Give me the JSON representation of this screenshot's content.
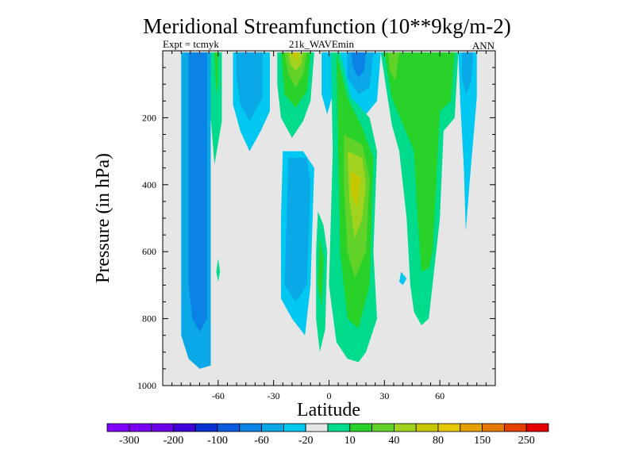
{
  "chart_data": {
    "type": "heatmap",
    "title": "Meridional Streamfunction (10**9kg/m-2)",
    "subtitle_left": "Expt = tcmyk",
    "subtitle_center": "21k_WAVEmin",
    "subtitle_right": "ANN",
    "xlabel": "Latitude",
    "ylabel": "Pressure (in hPa)",
    "xlim": [
      -90,
      90
    ],
    "ylim": [
      1000,
      0
    ],
    "x_ticks": [
      {
        "value": -60,
        "label": "-60"
      },
      {
        "value": -30,
        "label": "-30"
      },
      {
        "value": 0,
        "label": "0"
      },
      {
        "value": 30,
        "label": "30"
      },
      {
        "value": 60,
        "label": "60"
      }
    ],
    "y_ticks": [
      {
        "value": 200,
        "label": "200"
      },
      {
        "value": 400,
        "label": "400"
      },
      {
        "value": 600,
        "label": "600"
      },
      {
        "value": 800,
        "label": "800"
      },
      {
        "value": 1000,
        "label": "1000"
      }
    ],
    "background_color": "#e6e6e6",
    "colorbar": {
      "colors": [
        "#8000ff",
        "#7a00f0",
        "#6a00e6",
        "#4000d8",
        "#0830d0",
        "#0a5ae0",
        "#0a82e6",
        "#0aa8e6",
        "#00c8f0",
        "#e6e6e6",
        "#00dc8c",
        "#28d228",
        "#62d228",
        "#a0d21e",
        "#c8c800",
        "#e6c800",
        "#e6a000",
        "#e67800",
        "#e64000",
        "#e60000"
      ],
      "labels": [
        "-300",
        "-200",
        "-100",
        "-60",
        "-20",
        "10",
        "40",
        "80",
        "150",
        "250"
      ]
    },
    "contour_regions": [
      {
        "level": "-60",
        "color": "#0aa8e6",
        "points": [
          [
            -80,
            5
          ],
          [
            -64,
            5
          ],
          [
            -64,
            940
          ],
          [
            -70,
            950
          ],
          [
            -76,
            920
          ],
          [
            -80,
            850
          ]
        ]
      },
      {
        "level": "-100",
        "color": "#0a82e6",
        "points": [
          [
            -76,
            5
          ],
          [
            -66,
            5
          ],
          [
            -66,
            800
          ],
          [
            -70,
            840
          ],
          [
            -74,
            800
          ],
          [
            -76,
            700
          ]
        ]
      },
      {
        "level": "-20",
        "color": "#00c8f0",
        "points": [
          [
            -52,
            5
          ],
          [
            -32,
            5
          ],
          [
            -32,
            180
          ],
          [
            -37,
            240
          ],
          [
            -43,
            300
          ],
          [
            -48,
            240
          ],
          [
            -52,
            160
          ]
        ]
      },
      {
        "level": "-60",
        "color": "#0aa8e6",
        "points": [
          [
            -50,
            5
          ],
          [
            -36,
            5
          ],
          [
            -36,
            140
          ],
          [
            -43,
            210
          ],
          [
            -48,
            160
          ],
          [
            -50,
            80
          ]
        ]
      },
      {
        "level": "-20",
        "color": "#00c8f0",
        "points": [
          [
            -25,
            300
          ],
          [
            -14,
            300
          ],
          [
            -8,
            350
          ],
          [
            -10,
            700
          ],
          [
            -13,
            850
          ],
          [
            -20,
            800
          ],
          [
            -26,
            740
          ],
          [
            -26,
            500
          ]
        ]
      },
      {
        "level": "-60",
        "color": "#0aa8e6",
        "points": [
          [
            -22,
            320
          ],
          [
            -12,
            320
          ],
          [
            -10,
            400
          ],
          [
            -12,
            700
          ],
          [
            -18,
            750
          ],
          [
            -24,
            700
          ]
        ]
      },
      {
        "level": "-20",
        "color": "#00c8f0",
        "points": [
          [
            -4,
            5
          ],
          [
            1,
            5
          ],
          [
            2,
            130
          ],
          [
            -1,
            190
          ],
          [
            -4,
            130
          ]
        ]
      },
      {
        "level": "-20",
        "color": "#00c8f0",
        "points": [
          [
            6,
            5
          ],
          [
            28,
            5
          ],
          [
            26,
            150
          ],
          [
            20,
            190
          ],
          [
            12,
            140
          ],
          [
            6,
            80
          ]
        ]
      },
      {
        "level": "-60",
        "color": "#0aa8e6",
        "points": [
          [
            10,
            5
          ],
          [
            24,
            5
          ],
          [
            22,
            110
          ],
          [
            16,
            130
          ],
          [
            10,
            80
          ]
        ]
      },
      {
        "level": "-100",
        "color": "#0a82e6",
        "points": [
          [
            12,
            5
          ],
          [
            20,
            5
          ],
          [
            19,
            60
          ],
          [
            16,
            80
          ],
          [
            13,
            50
          ]
        ]
      },
      {
        "level": "-20",
        "color": "#00c8f0",
        "points": [
          [
            70,
            5
          ],
          [
            80,
            5
          ],
          [
            80,
            140
          ],
          [
            76,
            400
          ],
          [
            74,
            540
          ],
          [
            73,
            350
          ],
          [
            71,
            150
          ]
        ]
      },
      {
        "level": "-60",
        "color": "#0aa8e6",
        "points": [
          [
            72,
            5
          ],
          [
            78,
            5
          ],
          [
            77,
            90
          ],
          [
            74,
            130
          ],
          [
            72,
            80
          ]
        ]
      },
      {
        "level": "-20",
        "color": "#00c8f0",
        "points": [
          [
            39,
            660
          ],
          [
            42,
            680
          ],
          [
            40,
            700
          ],
          [
            38,
            690
          ]
        ]
      },
      {
        "level": "10",
        "color": "#00dc8c",
        "points": [
          [
            -64,
            5
          ],
          [
            -58,
            5
          ],
          [
            -58,
            210
          ],
          [
            -62,
            340
          ],
          [
            -64,
            200
          ]
        ]
      },
      {
        "level": "40",
        "color": "#28d228",
        "points": [
          [
            -62,
            5
          ],
          [
            -60,
            5
          ],
          [
            -60,
            100
          ],
          [
            -61,
            130
          ]
        ]
      },
      {
        "level": "10",
        "color": "#00dc8c",
        "points": [
          [
            -60,
            620
          ],
          [
            -59,
            660
          ],
          [
            -60,
            690
          ],
          [
            -61,
            660
          ]
        ]
      },
      {
        "level": "10",
        "color": "#00dc8c",
        "points": [
          [
            -28,
            5
          ],
          [
            -8,
            5
          ],
          [
            -10,
            150
          ],
          [
            -14,
            210
          ],
          [
            -20,
            260
          ],
          [
            -26,
            200
          ],
          [
            -28,
            100
          ]
        ]
      },
      {
        "level": "40",
        "color": "#28d228",
        "points": [
          [
            -26,
            5
          ],
          [
            -10,
            5
          ],
          [
            -12,
            120
          ],
          [
            -18,
            170
          ],
          [
            -24,
            130
          ]
        ]
      },
      {
        "level": "80",
        "color": "#62d228",
        "points": [
          [
            -24,
            5
          ],
          [
            -12,
            5
          ],
          [
            -14,
            70
          ],
          [
            -18,
            110
          ],
          [
            -22,
            70
          ]
        ]
      },
      {
        "level": "150",
        "color": "#a0d21e",
        "points": [
          [
            -22,
            5
          ],
          [
            -14,
            5
          ],
          [
            -15,
            40
          ],
          [
            -18,
            60
          ],
          [
            -21,
            40
          ]
        ]
      },
      {
        "level": "250",
        "color": "#c8c800",
        "points": [
          [
            -20,
            5
          ],
          [
            -16,
            5
          ],
          [
            -17,
            20
          ],
          [
            -18,
            30
          ],
          [
            -19,
            20
          ]
        ]
      },
      {
        "level": "10",
        "color": "#00dc8c",
        "points": [
          [
            -6,
            480
          ],
          [
            -3,
            520
          ],
          [
            -1,
            600
          ],
          [
            -2,
            830
          ],
          [
            -5,
            900
          ],
          [
            -7,
            800
          ],
          [
            -7,
            600
          ]
        ]
      },
      {
        "level": "40",
        "color": "#28d228",
        "points": [
          [
            -5,
            560
          ],
          [
            -3,
            620
          ],
          [
            -4,
            760
          ],
          [
            -6,
            700
          ]
        ]
      },
      {
        "level": "10",
        "color": "#00dc8c",
        "points": [
          [
            1,
            5
          ],
          [
            6,
            5
          ],
          [
            12,
            140
          ],
          [
            22,
            200
          ],
          [
            26,
            300
          ],
          [
            24,
            600
          ],
          [
            26,
            800
          ],
          [
            20,
            900
          ],
          [
            16,
            930
          ],
          [
            10,
            920
          ],
          [
            4,
            870
          ],
          [
            0,
            700
          ],
          [
            2,
            300
          ]
        ]
      },
      {
        "level": "40",
        "color": "#28d228",
        "points": [
          [
            4,
            5
          ],
          [
            10,
            140
          ],
          [
            18,
            230
          ],
          [
            24,
            320
          ],
          [
            22,
            700
          ],
          [
            16,
            830
          ],
          [
            10,
            800
          ],
          [
            6,
            600
          ],
          [
            5,
            300
          ]
        ]
      },
      {
        "level": "80",
        "color": "#62d228",
        "points": [
          [
            8,
            250
          ],
          [
            18,
            280
          ],
          [
            22,
            380
          ],
          [
            20,
            600
          ],
          [
            14,
            680
          ],
          [
            10,
            600
          ],
          [
            8,
            400
          ]
        ]
      },
      {
        "level": "150",
        "color": "#a0d21e",
        "points": [
          [
            10,
            300
          ],
          [
            18,
            320
          ],
          [
            20,
            400
          ],
          [
            18,
            500
          ],
          [
            14,
            560
          ],
          [
            11,
            450
          ]
        ]
      },
      {
        "level": "250",
        "color": "#c8c800",
        "points": [
          [
            12,
            360
          ],
          [
            17,
            380
          ],
          [
            15,
            470
          ],
          [
            12,
            420
          ]
        ]
      },
      {
        "level": "10",
        "color": "#00dc8c",
        "points": [
          [
            28,
            5
          ],
          [
            70,
            5
          ],
          [
            68,
            200
          ],
          [
            62,
            240
          ],
          [
            60,
            500
          ],
          [
            56,
            700
          ],
          [
            54,
            800
          ],
          [
            50,
            820
          ],
          [
            46,
            780
          ],
          [
            44,
            700
          ],
          [
            42,
            500
          ],
          [
            38,
            300
          ],
          [
            34,
            220
          ],
          [
            32,
            150
          ]
        ]
      },
      {
        "level": "40",
        "color": "#28d228",
        "points": [
          [
            30,
            5
          ],
          [
            68,
            5
          ],
          [
            66,
            150
          ],
          [
            60,
            180
          ],
          [
            58,
            400
          ],
          [
            56,
            600
          ],
          [
            54,
            650
          ],
          [
            50,
            660
          ],
          [
            48,
            500
          ],
          [
            46,
            300
          ],
          [
            40,
            220
          ],
          [
            34,
            140
          ]
        ]
      },
      {
        "level": "80",
        "color": "#62d228",
        "points": [
          [
            32,
            5
          ],
          [
            38,
            5
          ],
          [
            36,
            90
          ],
          [
            33,
            60
          ]
        ]
      }
    ]
  }
}
